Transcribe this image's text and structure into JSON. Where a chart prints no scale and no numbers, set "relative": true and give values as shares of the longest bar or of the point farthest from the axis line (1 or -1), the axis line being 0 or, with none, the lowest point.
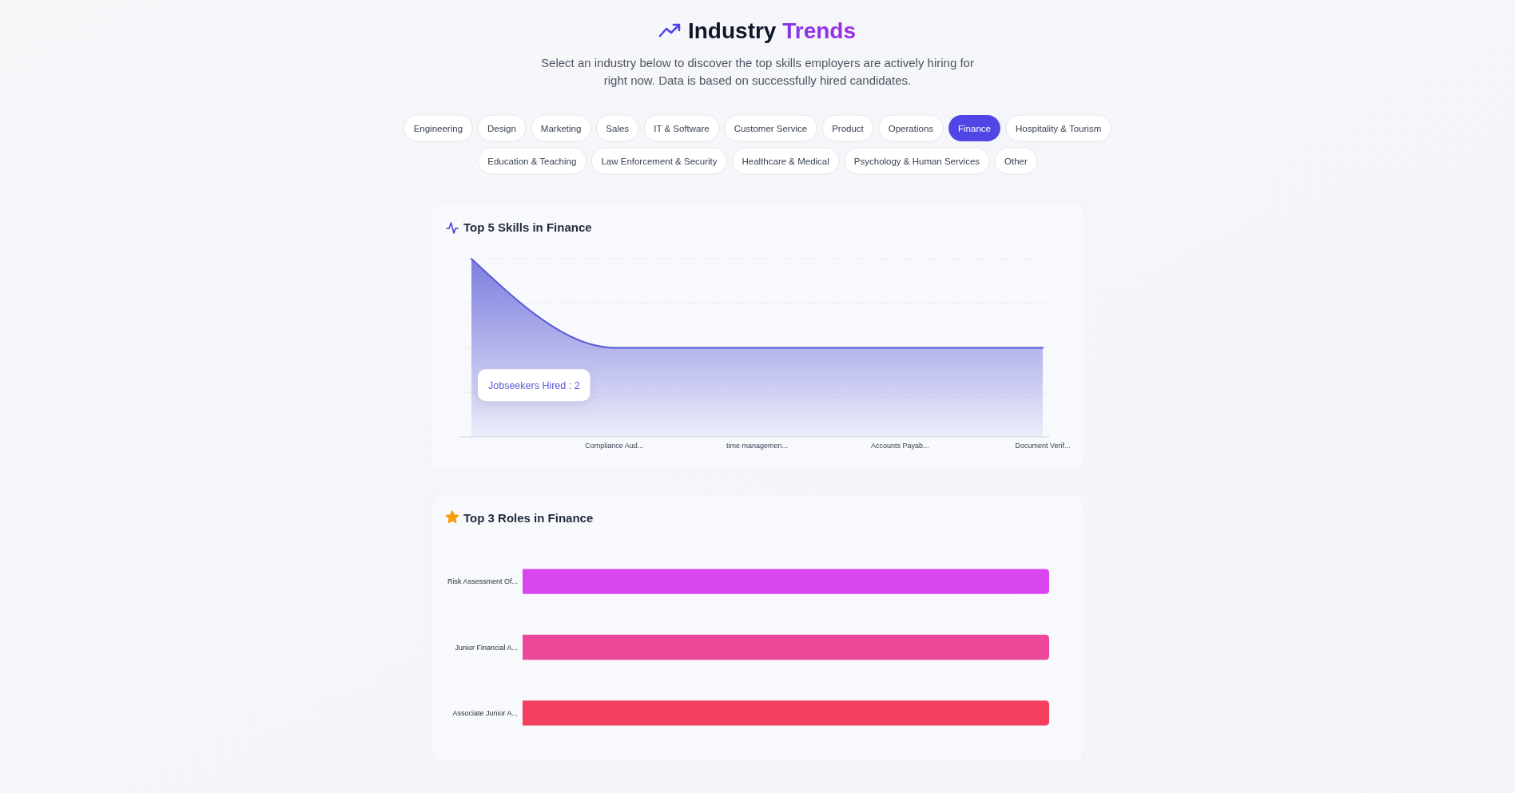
{
  "chart_data": [
    {
      "type": "other",
      "title": "Industry Trends",
      "subtitle": "Select an industry below to discover the top skills employers are actively hiring for right now. Data is based on successfully hired candidates.",
      "categories": [
        "Engineering",
        "Design",
        "Marketing",
        "Sales",
        "IT & Software",
        "Customer Service",
        "Product",
        "Operations",
        "Finance",
        "Hospitality & Tourism",
        "Education & Teaching",
        "Law Enforcement & Security",
        "Healthcare & Medical",
        "Psychology & Human Services",
        "Other"
      ],
      "colors": [
        "#ffffff",
        "#ffffff",
        "#ffffff",
        "#ffffff",
        "#ffffff",
        "#ffffff",
        "#ffffff",
        "#ffffff",
        "#4f46e5",
        "#ffffff",
        "#ffffff",
        "#ffffff",
        "#ffffff",
        "#ffffff",
        "#ffffff"
      ]
    },
    {
      "type": "area",
      "title": "Top 5 Skills in Finance",
      "categories": [
        null,
        "Compliance Aud...",
        "time managemen...",
        "Accounts Payab...",
        "Document Verif..."
      ],
      "values": [
        1,
        0.5,
        0.5,
        0.5,
        0.5
      ],
      "relative": true,
      "color": "#5b5bd8",
      "grid": "y",
      "annotations": [
        "Jobseekers Hired : 2"
      ]
    },
    {
      "type": "bar",
      "orientation": "horizontal",
      "title": "Top 3 Roles in Finance",
      "categories": [
        "Risk Assessment Of...",
        "Junior Financial A...",
        "Associate Junior A..."
      ],
      "values": [
        1,
        1,
        1
      ],
      "relative": true,
      "colors": [
        "#d946ef",
        "#ec4899",
        "#f43f5e"
      ]
    }
  ]
}
